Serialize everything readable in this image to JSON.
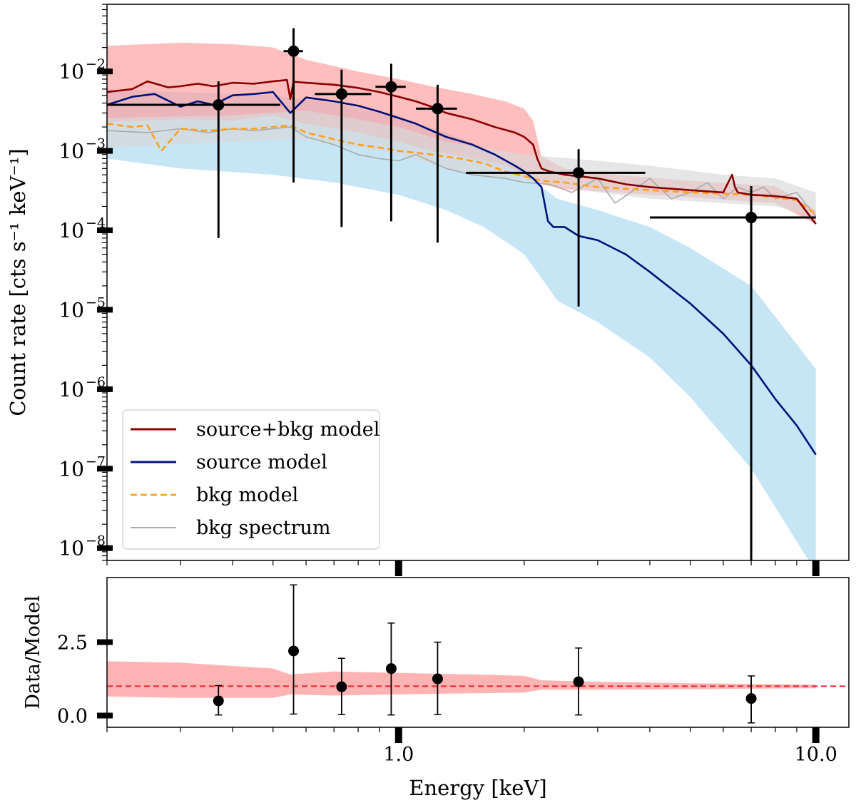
{
  "chart_data": [
    {
      "type": "line",
      "panel": "spectrum",
      "xscale": "log",
      "yscale": "log",
      "xlim": [
        0.2,
        12.0
      ],
      "ylim": [
        7e-09,
        0.07
      ],
      "ylabel": "Count rate [cts s⁻¹ keV⁻¹]",
      "yticks": [
        {
          "value": 0.01,
          "base": "10",
          "exp": "−2"
        },
        {
          "value": 0.001,
          "base": "10",
          "exp": "−3"
        },
        {
          "value": 0.0001,
          "base": "10",
          "exp": "−4"
        },
        {
          "value": 1e-05,
          "base": "10",
          "exp": "−5"
        },
        {
          "value": 1e-06,
          "base": "10",
          "exp": "−6"
        },
        {
          "value": 1e-07,
          "base": "10",
          "exp": "−7"
        },
        {
          "value": 1e-08,
          "base": "10",
          "exp": "−8"
        }
      ],
      "bands": [
        {
          "name": "source model uncertainty",
          "color": "#a8d8f0",
          "x": [
            0.2,
            0.3,
            0.5,
            0.7,
            1.0,
            1.3,
            1.6,
            2.0,
            2.2,
            2.4,
            3.0,
            4.0,
            5.0,
            7.0,
            10.0
          ],
          "low": [
            0.0008,
            0.0006,
            0.0005,
            0.0004,
            0.00028,
            0.00018,
            0.00011,
            5e-05,
            2.5e-05,
            1.3e-05,
            7e-06,
            2.5e-06,
            8e-07,
            1e-07,
            5e-09
          ],
          "high": [
            0.006,
            0.0055,
            0.005,
            0.004,
            0.0026,
            0.0017,
            0.0011,
            0.0006,
            0.00035,
            0.00025,
            0.00018,
            0.00011,
            6e-05,
            2e-05,
            1.8e-06
          ]
        },
        {
          "name": "source+bkg model uncertainty",
          "color": "#ff9b9b",
          "x": [
            0.2,
            0.3,
            0.4,
            0.5,
            0.6,
            0.8,
            1.0,
            1.2,
            1.5,
            1.8,
            2.0,
            2.1,
            2.2,
            2.5,
            3.0,
            5.0,
            8.0,
            10.0
          ],
          "low": [
            0.0023,
            0.0025,
            0.0024,
            0.0028,
            0.0022,
            0.0017,
            0.0013,
            0.001,
            0.0008,
            0.00065,
            0.0005,
            0.00045,
            0.00038,
            0.00033,
            0.00031,
            0.00026,
            0.00022,
            0.00012
          ],
          "high": [
            0.021,
            0.023,
            0.022,
            0.02,
            0.014,
            0.01,
            0.008,
            0.0065,
            0.0052,
            0.0042,
            0.0034,
            0.0024,
            0.00085,
            0.0006,
            0.00052,
            0.00042,
            0.00036,
            0.00018
          ]
        },
        {
          "name": "bkg spectrum uncertainty",
          "color": "#d8d8d8",
          "x": [
            0.2,
            0.4,
            0.6,
            0.8,
            1.0,
            1.3,
            1.6,
            2.0,
            3.0,
            4.0,
            6.0,
            8.0,
            10.0
          ],
          "low": [
            0.0011,
            0.0013,
            0.0014,
            0.0011,
            0.0009,
            0.0006,
            0.0005,
            0.00043,
            0.0003,
            0.00025,
            0.00022,
            0.0002,
            0.00015
          ],
          "high": [
            0.0026,
            0.0028,
            0.0032,
            0.0025,
            0.002,
            0.0013,
            0.0011,
            0.0009,
            0.00075,
            0.00065,
            0.0005,
            0.00045,
            0.0003
          ]
        }
      ],
      "series": [
        {
          "name": "bkg spectrum",
          "color": "#aaaaaa",
          "dash": "solid",
          "x": [
            0.2,
            0.25,
            0.3,
            0.35,
            0.4,
            0.45,
            0.5,
            0.55,
            0.6,
            0.7,
            0.8,
            0.9,
            1.0,
            1.1,
            1.3,
            1.5,
            1.8,
            2.0,
            2.3,
            2.6,
            3.0,
            3.3,
            3.6,
            4.0,
            4.5,
            5.0,
            5.5,
            6.0,
            6.5,
            7.0,
            7.5,
            8.0,
            9.0,
            10.0
          ],
          "y": [
            0.0018,
            0.0017,
            0.0019,
            0.0017,
            0.0019,
            0.0018,
            0.0019,
            0.002,
            0.0015,
            0.0012,
            0.0009,
            0.0008,
            0.00075,
            0.0009,
            0.0006,
            0.0005,
            0.00045,
            0.0004,
            0.00038,
            0.0003,
            0.00045,
            0.00022,
            0.0003,
            0.00045,
            0.00025,
            0.0003,
            0.0004,
            0.00025,
            0.00035,
            0.0003,
            0.00035,
            0.00025,
            0.0003,
            0.00015
          ]
        },
        {
          "name": "bkg model",
          "color": "#ff9f1c",
          "dash": "dashed",
          "x": [
            0.2,
            0.23,
            0.25,
            0.27,
            0.3,
            0.35,
            0.4,
            0.45,
            0.5,
            0.55,
            0.6,
            0.7,
            0.8,
            0.9,
            1.0,
            1.2,
            1.4,
            1.6,
            1.8,
            2.0,
            2.2,
            2.5,
            3.0,
            4.0,
            5.0,
            6.0,
            7.0,
            8.0,
            9.0,
            10.0
          ],
          "y": [
            0.0022,
            0.002,
            0.0021,
            0.001,
            0.0019,
            0.0018,
            0.0019,
            0.0019,
            0.002,
            0.0021,
            0.0017,
            0.0014,
            0.0012,
            0.0011,
            0.001,
            0.0009,
            0.0008,
            0.0007,
            0.00055,
            0.00048,
            0.00042,
            0.0004,
            0.00035,
            0.00032,
            0.0003,
            0.00029,
            0.00028,
            0.00026,
            0.00024,
            0.00016
          ]
        },
        {
          "name": "source model",
          "color": "#00127a",
          "dash": "solid",
          "x": [
            0.2,
            0.23,
            0.26,
            0.3,
            0.33,
            0.36,
            0.4,
            0.45,
            0.5,
            0.55,
            0.6,
            0.7,
            0.8,
            0.9,
            1.0,
            1.1,
            1.2,
            1.3,
            1.5,
            1.7,
            1.9,
            2.0,
            2.1,
            2.2,
            2.28,
            2.35,
            2.5,
            2.7,
            3.0,
            3.5,
            4.0,
            5.0,
            6.0,
            7.0,
            8.0,
            9.0,
            10.0
          ],
          "y": [
            0.0038,
            0.0048,
            0.0052,
            0.0036,
            0.0042,
            0.0038,
            0.005,
            0.0052,
            0.0055,
            0.003,
            0.0047,
            0.0042,
            0.0037,
            0.0031,
            0.0026,
            0.0022,
            0.0018,
            0.0015,
            0.0012,
            0.0009,
            0.00065,
            0.00055,
            0.00045,
            0.00035,
            0.00013,
            0.00011,
            0.00011,
            8.5e-05,
            7.5e-05,
            5e-05,
            3e-05,
            1.2e-05,
            5e-06,
            2e-06,
            7.5e-07,
            3.5e-07,
            1.5e-07
          ]
        },
        {
          "name": "source+bkg model",
          "color": "#8b0000",
          "dash": "solid",
          "x": [
            0.2,
            0.23,
            0.25,
            0.28,
            0.3,
            0.33,
            0.36,
            0.4,
            0.45,
            0.5,
            0.54,
            0.55,
            0.56,
            0.6,
            0.7,
            0.8,
            0.9,
            1.0,
            1.1,
            1.2,
            1.3,
            1.5,
            1.7,
            1.9,
            2.0,
            2.1,
            2.15,
            2.2,
            2.3,
            2.5,
            3.0,
            3.5,
            4.0,
            5.0,
            6.0,
            6.3,
            6.4,
            6.5,
            7.0,
            8.0,
            9.0,
            10.0
          ],
          "y": [
            0.0055,
            0.006,
            0.0075,
            0.0063,
            0.0065,
            0.007,
            0.0065,
            0.0072,
            0.007,
            0.0075,
            0.0078,
            0.0045,
            0.0074,
            0.0072,
            0.0068,
            0.0062,
            0.0055,
            0.0048,
            0.0042,
            0.0036,
            0.003,
            0.0025,
            0.002,
            0.0017,
            0.0015,
            0.0012,
            0.0008,
            0.0006,
            0.00055,
            0.0005,
            0.00045,
            0.00038,
            0.00035,
            0.00032,
            0.0003,
            0.0005,
            0.00035,
            0.0003,
            0.00028,
            0.00027,
            0.00025,
            0.00012
          ]
        }
      ],
      "points": {
        "name": "data",
        "color": "#000000",
        "x": [
          0.37,
          0.56,
          0.73,
          0.96,
          1.24,
          2.7,
          7.0
        ],
        "xlo": [
          0.2,
          0.53,
          0.63,
          0.88,
          1.1,
          1.45,
          4.0
        ],
        "xhi": [
          0.52,
          0.59,
          0.86,
          1.04,
          1.38,
          3.9,
          10.0
        ],
        "y": [
          0.0038,
          0.018,
          0.0052,
          0.0064,
          0.0034,
          0.00053,
          0.000145
        ],
        "ylo": [
          8e-05,
          0.0004,
          0.00011,
          0.00013,
          7e-05,
          1.1e-05,
          7e-09
        ],
        "yhi": [
          0.0075,
          0.035,
          0.0105,
          0.0125,
          0.0068,
          0.00105,
          0.00036
        ]
      },
      "legend": {
        "position": "lower-left",
        "entries": [
          {
            "label": "source+bkg model",
            "color": "#8b0000",
            "dash": "solid"
          },
          {
            "label": "source model",
            "color": "#00127a",
            "dash": "solid"
          },
          {
            "label": "bkg model",
            "color": "#ff9f1c",
            "dash": "dashed"
          },
          {
            "label": "bkg spectrum",
            "color": "#aaaaaa",
            "dash": "solid"
          }
        ]
      }
    },
    {
      "type": "scatter",
      "panel": "ratio",
      "xscale": "log",
      "yscale": "linear",
      "xlim": [
        0.2,
        12.0
      ],
      "ylim": [
        -0.4,
        4.7
      ],
      "xlabel": "Energy [keV]",
      "ylabel": "Data/Model",
      "xticks": [
        {
          "value": 1.0,
          "label": "1.0"
        },
        {
          "value": 10.0,
          "label": "10.0"
        }
      ],
      "yticks": [
        {
          "value": 0.0,
          "label": "0.0"
        },
        {
          "value": 2.5,
          "label": "2.5"
        }
      ],
      "reference_line": {
        "y": 1.0,
        "color": "#e8242a",
        "dash": "dashed"
      },
      "band": {
        "color": "#ffb3b3",
        "x": [
          0.2,
          0.3,
          0.5,
          0.55,
          0.7,
          1.0,
          1.5,
          2.0,
          2.2,
          3.0,
          5.0,
          10.0
        ],
        "low": [
          0.65,
          0.6,
          0.6,
          0.72,
          0.68,
          0.72,
          0.76,
          0.78,
          0.88,
          0.88,
          0.9,
          0.93
        ],
        "high": [
          1.85,
          1.8,
          1.6,
          1.4,
          1.5,
          1.45,
          1.4,
          1.35,
          1.2,
          1.15,
          1.1,
          1.05
        ]
      },
      "points": {
        "color": "#000000",
        "x": [
          0.37,
          0.56,
          0.73,
          0.96,
          1.24,
          2.7,
          7.0
        ],
        "y": [
          0.5,
          2.2,
          0.98,
          1.6,
          1.25,
          1.15,
          0.58
        ],
        "ylo": [
          0.02,
          0.05,
          0.03,
          0.02,
          0.03,
          0.02,
          -0.25
        ],
        "yhi": [
          1.02,
          4.45,
          1.95,
          3.15,
          2.5,
          2.3,
          1.35
        ]
      }
    }
  ]
}
